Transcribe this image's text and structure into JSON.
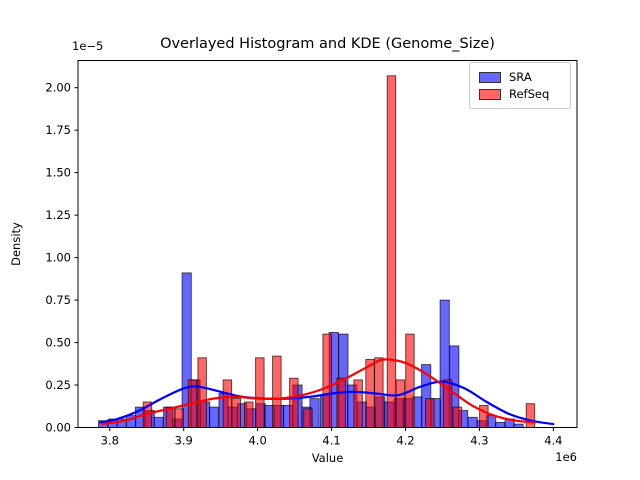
{
  "chart_data": {
    "type": "histogram+kde",
    "title": "Overlayed Histogram and KDE (Genome_Size)",
    "xlabel": "Value",
    "ylabel": "Density",
    "x_offset_label": "1e6",
    "y_offset_label": "1e−5",
    "grid": false,
    "xlim": [
      3.757,
      4.432
    ],
    "ylim": [
      0,
      2.16
    ],
    "x_ticks": [
      3.8,
      3.9,
      4.0,
      4.1,
      4.2,
      4.3,
      4.4
    ],
    "x_tick_labels": [
      "3.8",
      "3.9",
      "4.0",
      "4.1",
      "4.2",
      "4.3",
      "4.4"
    ],
    "y_ticks": [
      0,
      0.25,
      0.5,
      0.75,
      1.0,
      1.25,
      1.5,
      1.75,
      2.0
    ],
    "y_tick_labels": [
      "0.00",
      "0.25",
      "0.50",
      "0.75",
      "1.00",
      "1.25",
      "1.50",
      "1.75",
      "2.00"
    ],
    "legend": {
      "position": "upper right",
      "entries": [
        "SRA",
        "RefSeq"
      ]
    },
    "series": [
      {
        "name": "SRA",
        "color": "#0000ff",
        "alpha": 0.6,
        "bin_width": 0.0125,
        "bars": [
          [
            3.791,
            0.04
          ],
          [
            3.804,
            0.05
          ],
          [
            3.816,
            0.05
          ],
          [
            3.829,
            0.07
          ],
          [
            3.841,
            0.12
          ],
          [
            3.854,
            0.1
          ],
          [
            3.866,
            0.06
          ],
          [
            3.879,
            0.12
          ],
          [
            3.891,
            0.05
          ],
          [
            3.904,
            0.91
          ],
          [
            3.916,
            0.28
          ],
          [
            3.929,
            0.15
          ],
          [
            3.941,
            0.12
          ],
          [
            3.954,
            0.2
          ],
          [
            3.966,
            0.12
          ],
          [
            3.979,
            0.14
          ],
          [
            3.991,
            0.11
          ],
          [
            4.004,
            0.14
          ],
          [
            4.016,
            0.13
          ],
          [
            4.029,
            0.13
          ],
          [
            4.041,
            0.13
          ],
          [
            4.054,
            0.25
          ],
          [
            4.066,
            0.12
          ],
          [
            4.077,
            0.17
          ],
          [
            4.091,
            0.19
          ],
          [
            4.103,
            0.56
          ],
          [
            4.116,
            0.55
          ],
          [
            4.128,
            0.25
          ],
          [
            4.141,
            0.15
          ],
          [
            4.153,
            0.12
          ],
          [
            4.166,
            0.18
          ],
          [
            4.178,
            0.15
          ],
          [
            4.191,
            0.17
          ],
          [
            4.203,
            0.17
          ],
          [
            4.216,
            0.18
          ],
          [
            4.228,
            0.37
          ],
          [
            4.241,
            0.17
          ],
          [
            4.253,
            0.75
          ],
          [
            4.266,
            0.48
          ],
          [
            4.278,
            0.1
          ],
          [
            4.291,
            0.06
          ],
          [
            4.303,
            0.04
          ],
          [
            4.316,
            0.07
          ],
          [
            4.328,
            0.03
          ],
          [
            4.341,
            0.05
          ],
          [
            4.353,
            0.02
          ]
        ],
        "kde": [
          [
            3.787,
            0.03
          ],
          [
            3.81,
            0.05
          ],
          [
            3.84,
            0.1
          ],
          [
            3.87,
            0.17
          ],
          [
            3.9,
            0.23
          ],
          [
            3.92,
            0.24
          ],
          [
            3.95,
            0.21
          ],
          [
            3.98,
            0.18
          ],
          [
            4.01,
            0.17
          ],
          [
            4.04,
            0.17
          ],
          [
            4.07,
            0.18
          ],
          [
            4.1,
            0.2
          ],
          [
            4.13,
            0.21
          ],
          [
            4.16,
            0.2
          ],
          [
            4.19,
            0.19
          ],
          [
            4.22,
            0.24
          ],
          [
            4.25,
            0.27
          ],
          [
            4.28,
            0.23
          ],
          [
            4.31,
            0.15
          ],
          [
            4.34,
            0.08
          ],
          [
            4.37,
            0.04
          ],
          [
            4.4,
            0.02
          ]
        ]
      },
      {
        "name": "RefSeq",
        "color": "#ff0000",
        "alpha": 0.6,
        "bin_width": 0.0115,
        "bars": [
          [
            3.851,
            0.15
          ],
          [
            3.882,
            0.12
          ],
          [
            3.894,
            0.11
          ],
          [
            3.912,
            0.28
          ],
          [
            3.925,
            0.41
          ],
          [
            3.959,
            0.28
          ],
          [
            3.971,
            0.17
          ],
          [
            3.988,
            0.15
          ],
          [
            4.003,
            0.41
          ],
          [
            4.026,
            0.42
          ],
          [
            4.049,
            0.29
          ],
          [
            4.068,
            0.11
          ],
          [
            4.094,
            0.55
          ],
          [
            4.113,
            0.29
          ],
          [
            4.136,
            0.28
          ],
          [
            4.152,
            0.4
          ],
          [
            4.164,
            0.41
          ],
          [
            4.181,
            2.07
          ],
          [
            4.193,
            0.28
          ],
          [
            4.206,
            0.55
          ],
          [
            4.233,
            0.17
          ],
          [
            4.257,
            0.28
          ],
          [
            4.27,
            0.12
          ],
          [
            4.306,
            0.13
          ],
          [
            4.369,
            0.14
          ]
        ],
        "kde": [
          [
            3.79,
            0.02
          ],
          [
            3.82,
            0.04
          ],
          [
            3.85,
            0.08
          ],
          [
            3.88,
            0.11
          ],
          [
            3.91,
            0.14
          ],
          [
            3.94,
            0.17
          ],
          [
            3.97,
            0.18
          ],
          [
            4.0,
            0.17
          ],
          [
            4.03,
            0.17
          ],
          [
            4.06,
            0.19
          ],
          [
            4.09,
            0.23
          ],
          [
            4.12,
            0.29
          ],
          [
            4.15,
            0.36
          ],
          [
            4.17,
            0.4
          ],
          [
            4.2,
            0.38
          ],
          [
            4.23,
            0.31
          ],
          [
            4.26,
            0.22
          ],
          [
            4.29,
            0.13
          ],
          [
            4.32,
            0.07
          ],
          [
            4.35,
            0.04
          ],
          [
            4.375,
            0.03
          ]
        ]
      }
    ]
  }
}
